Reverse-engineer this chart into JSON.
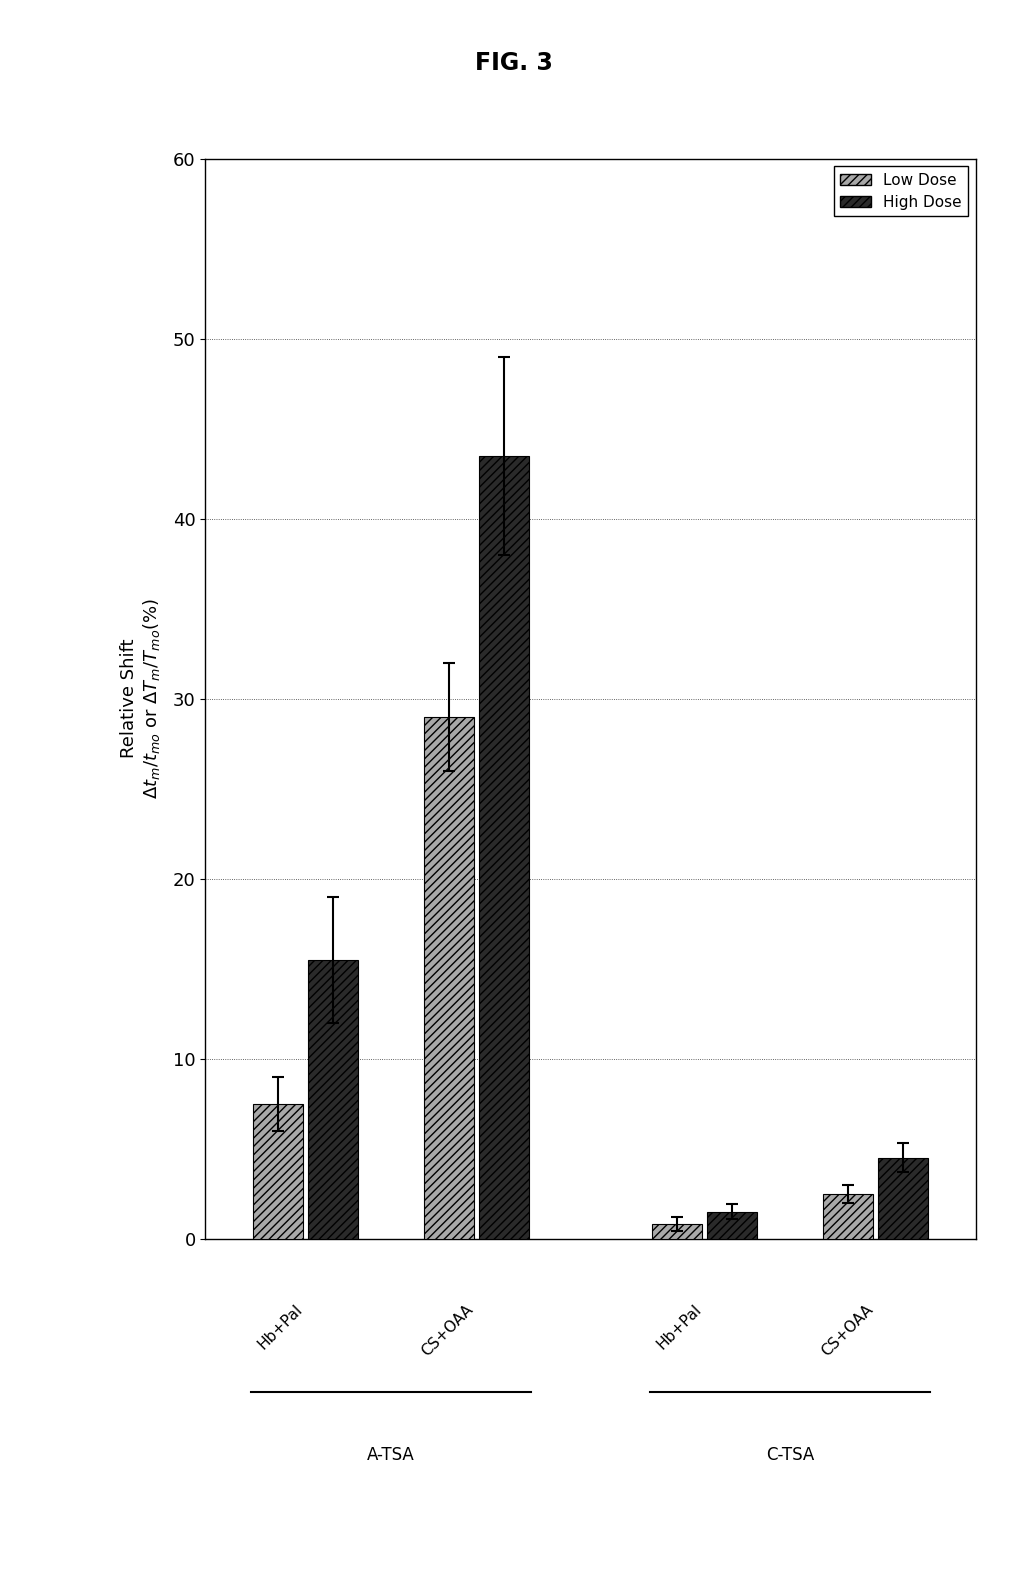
{
  "title": "FIG. 3",
  "ylim": [
    0,
    60
  ],
  "yticks": [
    0,
    10,
    20,
    30,
    40,
    50,
    60
  ],
  "groups": [
    "Hb+Pal",
    "CS+OAA",
    "Hb+Pal",
    "CS+OAA"
  ],
  "section_labels": [
    "A-TSA",
    "C-TSA"
  ],
  "bar_data": {
    "low_dose": [
      7.5,
      29.0,
      0.8,
      2.5
    ],
    "high_dose": [
      15.5,
      43.5,
      1.5,
      4.5
    ]
  },
  "error_bars": {
    "low_dose": [
      1.5,
      3.0,
      0.4,
      0.5
    ],
    "high_dose": [
      3.5,
      5.5,
      0.4,
      0.8
    ]
  },
  "low_color": "#a8a8a8",
  "high_color": "#2a2a2a",
  "bar_width": 0.35,
  "centers": [
    1.0,
    2.2,
    3.8,
    5.0
  ],
  "legend_labels": [
    "Low Dose",
    "High Dose"
  ],
  "background_color": "#ffffff",
  "tick_fontsize": 13,
  "label_fontsize": 13,
  "title_fontsize": 17
}
